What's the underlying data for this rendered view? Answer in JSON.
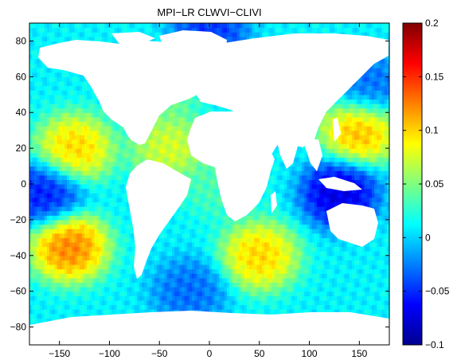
{
  "chart_data": {
    "type": "heatmap",
    "title": "MPI−LR CLWVI−CLIVI",
    "xlabel": "",
    "ylabel": "",
    "xlim": [
      -180,
      180
    ],
    "ylim": [
      -90,
      90
    ],
    "x_ticks": [
      -150,
      -100,
      -50,
      0,
      50,
      100,
      150
    ],
    "x_tick_labels": [
      "−150",
      "−100",
      "−50",
      "0",
      "50",
      "100",
      "150"
    ],
    "y_ticks": [
      -80,
      -60,
      -40,
      -20,
      0,
      20,
      40,
      60,
      80
    ],
    "y_tick_labels": [
      "−80",
      "−60",
      "−40",
      "−20",
      "0",
      "20",
      "40",
      "60",
      "80"
    ],
    "colorbar": {
      "range": [
        -0.1,
        0.2
      ],
      "ticks": [
        -0.1,
        -0.05,
        0,
        0.05,
        0.1,
        0.15,
        0.2
      ],
      "tick_labels": [
        "−0.1",
        "−0.05",
        "0",
        "0.05",
        "0.1",
        "0.15",
        "0.2"
      ],
      "colormap": "jet"
    },
    "land_mask_color": "#ffffff",
    "grid": false,
    "field_features": [
      {
        "lon": -140,
        "lat": -35,
        "value": 0.15
      },
      {
        "lon": 50,
        "lat": -40,
        "value": 0.12
      },
      {
        "lon": 150,
        "lat": 30,
        "value": 0.13
      },
      {
        "lon": -135,
        "lat": 20,
        "value": 0.12
      },
      {
        "lon": -40,
        "lat": 20,
        "value": 0.09
      },
      {
        "lon": -165,
        "lat": -5,
        "value": -0.07
      },
      {
        "lon": 130,
        "lat": -5,
        "value": -0.09
      },
      {
        "lon": -20,
        "lat": -60,
        "value": -0.04
      },
      {
        "lon": 0,
        "lat": 85,
        "value": -0.06
      },
      {
        "lon": -50,
        "lat": 55,
        "value": 0.06
      },
      {
        "lon": 10,
        "lat": 0,
        "value": 0.04
      },
      {
        "lon": 160,
        "lat": 55,
        "value": -0.04
      }
    ]
  }
}
